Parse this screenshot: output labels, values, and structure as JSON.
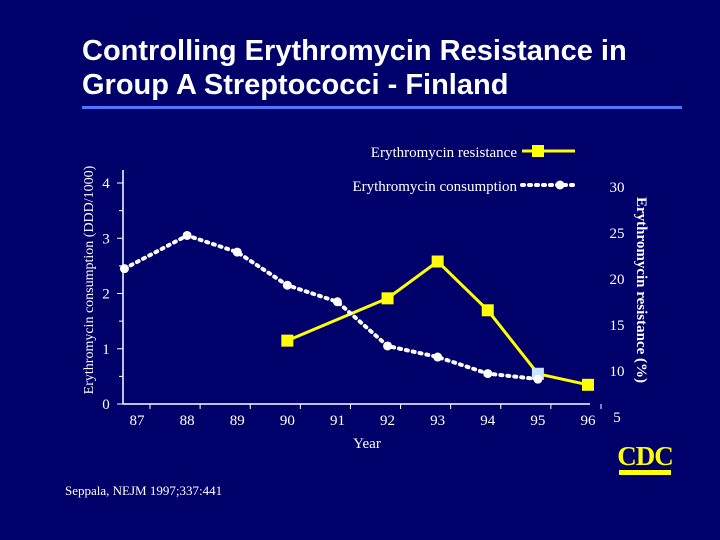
{
  "slide": {
    "title_line1": "Controlling Erythromycin Resistance in",
    "title_line2": "Group A Streptococci - Finland",
    "source": "Seppala, NEJM 1997;337:441",
    "logo_text": "CDC"
  },
  "colors": {
    "background": "#00006b",
    "text": "#ffffff",
    "rule": "#4a78ff",
    "resistance": "#ffff00",
    "consumption": "#ffffff",
    "highlight_point": "#c8e6ff",
    "logo": "#ffff00"
  },
  "chart_data": {
    "type": "line",
    "title": "",
    "xlabel": "Year",
    "ylabel_left": "Erythromycin consumption (DDD/1000)",
    "ylabel_right": "Erythromycin resistance (%)",
    "x_ticks": [
      "87",
      "88",
      "89",
      "90",
      "91",
      "92",
      "93",
      "94",
      "95",
      "96"
    ],
    "y_left_ticks": [
      "0",
      "1",
      "2",
      "3",
      "4"
    ],
    "y_left_range": [
      0,
      4
    ],
    "y_right_ticks": [
      "5",
      "10",
      "15",
      "20",
      "25",
      "30"
    ],
    "y_right_range": [
      5,
      30
    ],
    "grid": false,
    "legend": "top-right",
    "series": [
      {
        "name": "Erythromycin resistance",
        "axis": "right",
        "style": "solid",
        "x": [
          90,
          91,
          92,
          93,
          94,
          95,
          96
        ],
        "values": [
          13.3,
          null,
          17.9,
          21.9,
          16.6,
          9.7,
          8.5
        ],
        "highlight_x": 95
      },
      {
        "name": "Erythromycin consumption",
        "axis": "left",
        "style": "dotted",
        "x": [
          86.75,
          88,
          89,
          90,
          91,
          92,
          93,
          94,
          95
        ],
        "values": [
          2.45,
          3.05,
          2.75,
          2.15,
          1.85,
          1.05,
          0.85,
          0.55,
          0.45
        ]
      }
    ]
  }
}
